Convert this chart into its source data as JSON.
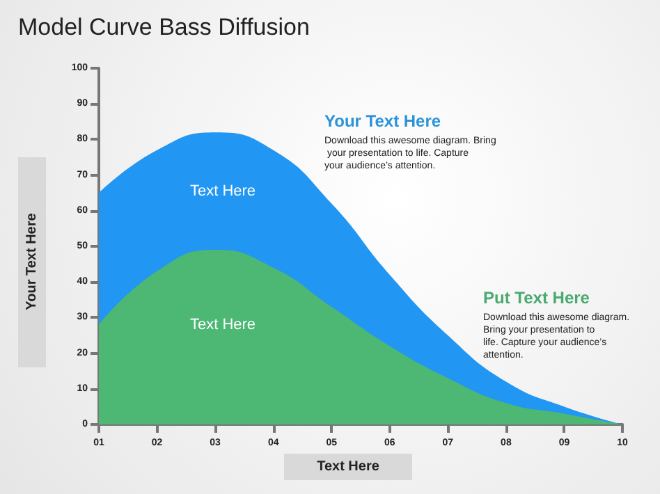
{
  "chart_data": {
    "type": "area",
    "title": "Model Curve Bass Diffusion",
    "xlabel": "Text Here",
    "ylabel": "Your Text Here",
    "categories": [
      "01",
      "02",
      "03",
      "04",
      "05",
      "06",
      "07",
      "08",
      "09",
      "10"
    ],
    "series": [
      {
        "color": "#2196f3",
        "values": [
          65,
          77,
          82,
          77,
          62,
          42,
          25,
          12,
          5,
          0
        ]
      },
      {
        "color": "#4cb874",
        "values": [
          28,
          43,
          49,
          44,
          33,
          22,
          13,
          6,
          3,
          0
        ]
      }
    ],
    "ylim": [
      0,
      100
    ],
    "yticks": [
      0,
      10,
      20,
      30,
      40,
      50,
      60,
      70,
      80,
      90,
      100
    ],
    "grid": false,
    "legend": false,
    "marker": "none",
    "annotations": [
      "Text Here",
      "Text Here",
      "Your Text Here",
      "Download this awesome diagram. Bring your presentation to life. Capture your audience’s attention.",
      "Put Text Here",
      "Download this awesome diagram. Bring your presentation to life. Capture your audience’s attention."
    ]
  }
}
